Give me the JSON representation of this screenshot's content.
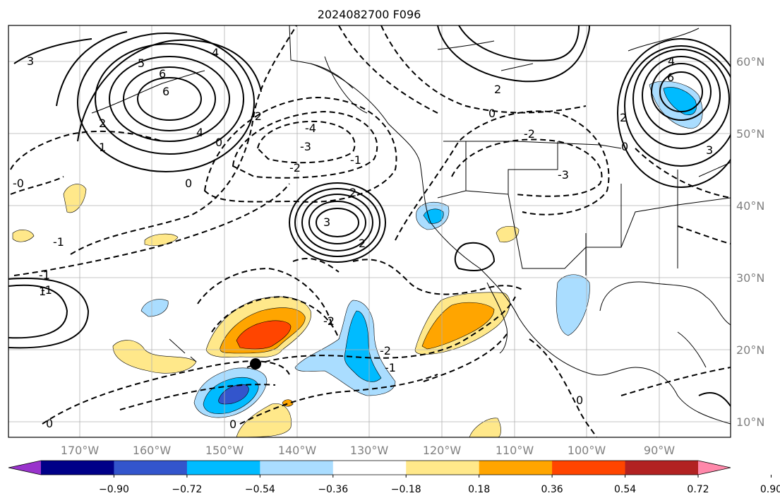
{
  "title": "2024082700 F096",
  "longitude_labels": [
    "170°W",
    "160°W",
    "150°W",
    "140°W",
    "130°W",
    "120°W",
    "110°W",
    "100°W",
    "90°W"
  ],
  "latitude_labels": [
    "60°N",
    "50°N",
    "40°N",
    "30°N",
    "20°N",
    "10°N"
  ],
  "colorbar": {
    "tick_labels": [
      "−0.90",
      "−0.72",
      "−0.54",
      "−0.36",
      "−0.18",
      "0.18",
      "0.36",
      "0.54",
      "0.72",
      "0.90"
    ],
    "colors": [
      "#9933cc",
      "#000088",
      "#3355cc",
      "#00bbff",
      "#aaddff",
      "#ffffff",
      "#ffe88a",
      "#ffa500",
      "#ff4500",
      "#b22222",
      "#ff88aa"
    ]
  },
  "contour_labels": {
    "solid": [
      "3",
      "2",
      "1",
      "6",
      "4",
      "4",
      "2",
      "0",
      "2",
      "4",
      "6",
      "5",
      "6",
      "3",
      "2",
      "0",
      "2",
      "3",
      "1"
    ],
    "dashed": [
      "-4",
      "-3",
      "-2",
      "-1",
      "0",
      "-2",
      "-3",
      "-2",
      "-1",
      "0",
      "-1",
      "-2",
      "-2",
      "-1",
      "0",
      "0",
      "-0",
      "-1",
      "0"
    ]
  },
  "marker": "storm-position"
}
